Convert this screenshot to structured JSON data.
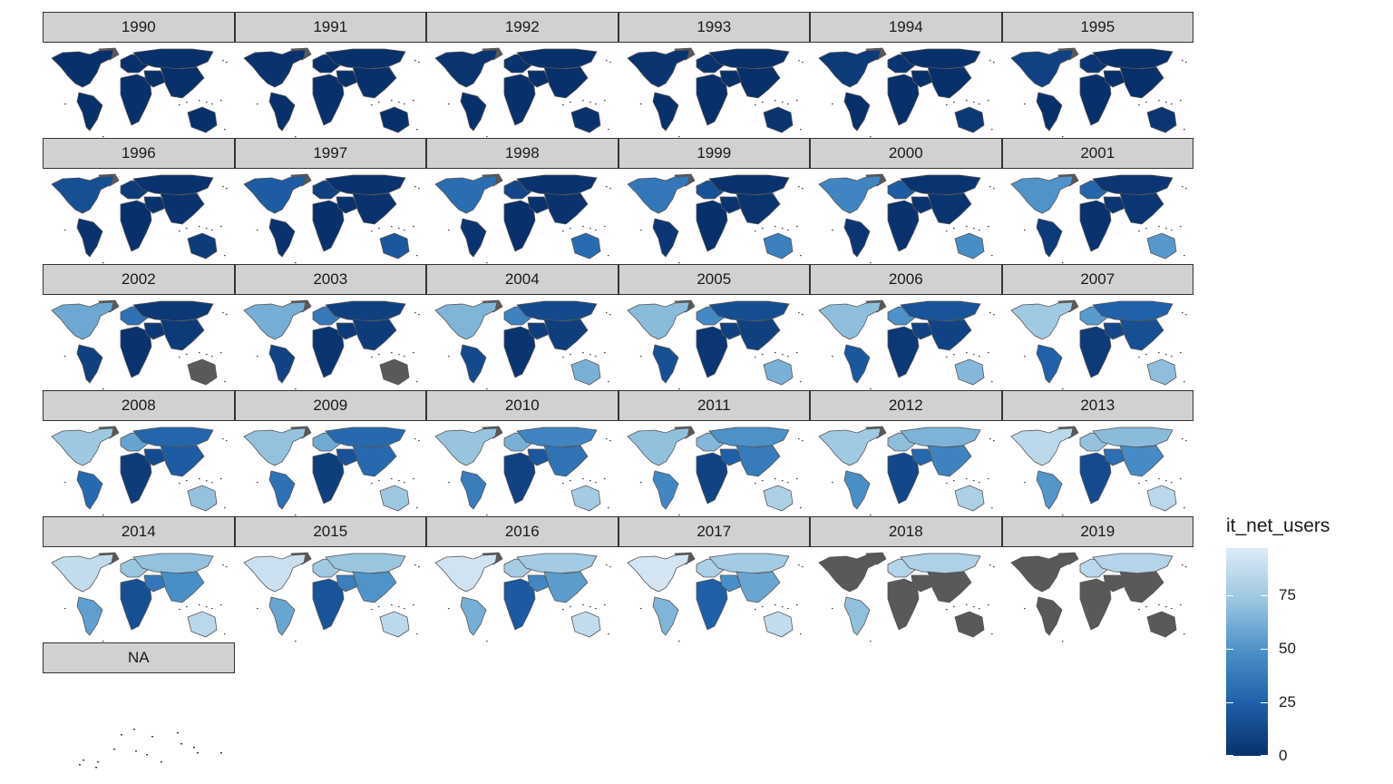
{
  "chart_data": {
    "type": "choropleth-facet",
    "fill_variable": "it_net_users",
    "panels": [
      {
        "label": "1990",
        "levels": {
          "na": 0,
          "sa": 0,
          "eu": 0,
          "ru": 0,
          "af": 0,
          "me": 0,
          "asia": 0,
          "oc": 0
        }
      },
      {
        "label": "1991",
        "levels": {
          "na": 1,
          "sa": 0,
          "eu": 0,
          "ru": 0,
          "af": 0,
          "me": 0,
          "asia": 0,
          "oc": 0
        }
      },
      {
        "label": "1992",
        "levels": {
          "na": 2,
          "sa": 0,
          "eu": 1,
          "ru": 0,
          "af": 0,
          "me": 0,
          "asia": 0,
          "oc": 1
        }
      },
      {
        "label": "1993",
        "levels": {
          "na": 2,
          "sa": 0,
          "eu": 1,
          "ru": 0,
          "af": 0,
          "me": 0,
          "asia": 0,
          "oc": 2
        }
      },
      {
        "label": "1994",
        "levels": {
          "na": 5,
          "sa": 0,
          "eu": 2,
          "ru": 0,
          "af": 0,
          "me": 0,
          "asia": 0,
          "oc": 4
        }
      },
      {
        "label": "1995",
        "levels": {
          "na": 9,
          "sa": 0,
          "eu": 3,
          "ru": 0,
          "af": 0,
          "me": 0,
          "asia": 0,
          "oc": 3
        }
      },
      {
        "label": "1996",
        "levels": {
          "na": 16,
          "sa": 1,
          "eu": 5,
          "ru": 1,
          "af": 0,
          "me": 1,
          "asia": 1,
          "oc": 6
        }
      },
      {
        "label": "1997",
        "levels": {
          "na": 22,
          "sa": 1,
          "eu": 8,
          "ru": 1,
          "af": 0,
          "me": 1,
          "asia": 1,
          "oc": 20
        }
      },
      {
        "label": "1998",
        "levels": {
          "na": 31,
          "sa": 2,
          "eu": 12,
          "ru": 1,
          "af": 0,
          "me": 1,
          "asia": 1,
          "oc": 30
        }
      },
      {
        "label": "1999",
        "levels": {
          "na": 36,
          "sa": 3,
          "eu": 17,
          "ru": 1,
          "af": 0,
          "me": 2,
          "asia": 2,
          "oc": 40
        }
      },
      {
        "label": "2000",
        "levels": {
          "na": 43,
          "sa": 3,
          "eu": 22,
          "ru": 2,
          "af": 1,
          "me": 2,
          "asia": 2,
          "oc": 47
        }
      },
      {
        "label": "2001",
        "levels": {
          "na": 50,
          "sa": 5,
          "eu": 27,
          "ru": 3,
          "af": 1,
          "me": 3,
          "asia": 3,
          "oc": 52
        }
      },
      {
        "label": "2002",
        "levels": {
          "na": 59,
          "sa": 8,
          "eu": 33,
          "ru": 4,
          "af": 1,
          "me": 4,
          "asia": 5,
          "oc": null
        }
      },
      {
        "label": "2003",
        "levels": {
          "na": 62,
          "sa": 10,
          "eu": 37,
          "ru": 8,
          "af": 2,
          "me": 5,
          "asia": 6,
          "oc": null
        }
      },
      {
        "label": "2004",
        "levels": {
          "na": 65,
          "sa": 13,
          "eu": 41,
          "ru": 13,
          "af": 2,
          "me": 7,
          "asia": 7,
          "oc": 63
        }
      },
      {
        "label": "2005",
        "levels": {
          "na": 68,
          "sa": 16,
          "eu": 45,
          "ru": 15,
          "af": 3,
          "me": 8,
          "asia": 8,
          "oc": 63
        }
      },
      {
        "label": "2006",
        "levels": {
          "na": 69,
          "sa": 20,
          "eu": 49,
          "ru": 18,
          "af": 4,
          "me": 10,
          "asia": 10,
          "oc": 66
        }
      },
      {
        "label": "2007",
        "levels": {
          "na": 75,
          "sa": 25,
          "eu": 53,
          "ru": 25,
          "af": 5,
          "me": 12,
          "asia": 16,
          "oc": 69
        }
      },
      {
        "label": "2008",
        "levels": {
          "na": 74,
          "sa": 29,
          "eu": 57,
          "ru": 27,
          "af": 6,
          "me": 14,
          "asia": 22,
          "oc": 71
        }
      },
      {
        "label": "2009",
        "levels": {
          "na": 71,
          "sa": 33,
          "eu": 60,
          "ru": 29,
          "af": 7,
          "me": 17,
          "asia": 29,
          "oc": 74
        }
      },
      {
        "label": "2010",
        "levels": {
          "na": 72,
          "sa": 39,
          "eu": 63,
          "ru": 43,
          "af": 9,
          "me": 20,
          "asia": 34,
          "oc": 76
        }
      },
      {
        "label": "2011",
        "levels": {
          "na": 70,
          "sa": 44,
          "eu": 66,
          "ru": 49,
          "af": 10,
          "me": 24,
          "asia": 38,
          "oc": 79
        }
      },
      {
        "label": "2012",
        "levels": {
          "na": 75,
          "sa": 48,
          "eu": 69,
          "ru": 64,
          "af": 12,
          "me": 28,
          "asia": 42,
          "oc": 79
        }
      },
      {
        "label": "2013",
        "levels": {
          "na": 85,
          "sa": 51,
          "eu": 71,
          "ru": 68,
          "af": 14,
          "me": 32,
          "asia": 46,
          "oc": 84
        }
      },
      {
        "label": "2014",
        "levels": {
          "na": 87,
          "sa": 55,
          "eu": 73,
          "ru": 71,
          "af": 16,
          "me": 36,
          "asia": 48,
          "oc": 84
        }
      },
      {
        "label": "2015",
        "levels": {
          "na": 90,
          "sa": 58,
          "eu": 75,
          "ru": 73,
          "af": 18,
          "me": 40,
          "asia": 50,
          "oc": 85
        }
      },
      {
        "label": "2016",
        "levels": {
          "na": 92,
          "sa": 62,
          "eu": 77,
          "ru": 76,
          "af": 21,
          "me": 44,
          "asia": 54,
          "oc": 87
        }
      },
      {
        "label": "2017",
        "levels": {
          "na": 93,
          "sa": 65,
          "eu": 79,
          "ru": 76,
          "af": 24,
          "me": 48,
          "asia": 58,
          "oc": 87
        }
      },
      {
        "label": "2018",
        "levels": {
          "na": null,
          "sa": 70,
          "eu": 82,
          "ru": 80,
          "af": null,
          "me": null,
          "asia": null,
          "oc": null
        }
      },
      {
        "label": "2019",
        "levels": {
          "na": null,
          "sa": null,
          "eu": 84,
          "ru": 82,
          "af": null,
          "me": null,
          "asia": null,
          "oc": null
        }
      },
      {
        "label": "NA",
        "levels": null
      }
    ],
    "legend": {
      "title": "it_net_users",
      "ticks": [
        0,
        25,
        50,
        75
      ],
      "tick_labels": [
        "0",
        "25",
        "50",
        "75"
      ],
      "range": [
        0,
        97
      ],
      "low_color": "#08306b",
      "high_color": "#deebf7",
      "na_color": "#595959",
      "placement": "right"
    }
  }
}
